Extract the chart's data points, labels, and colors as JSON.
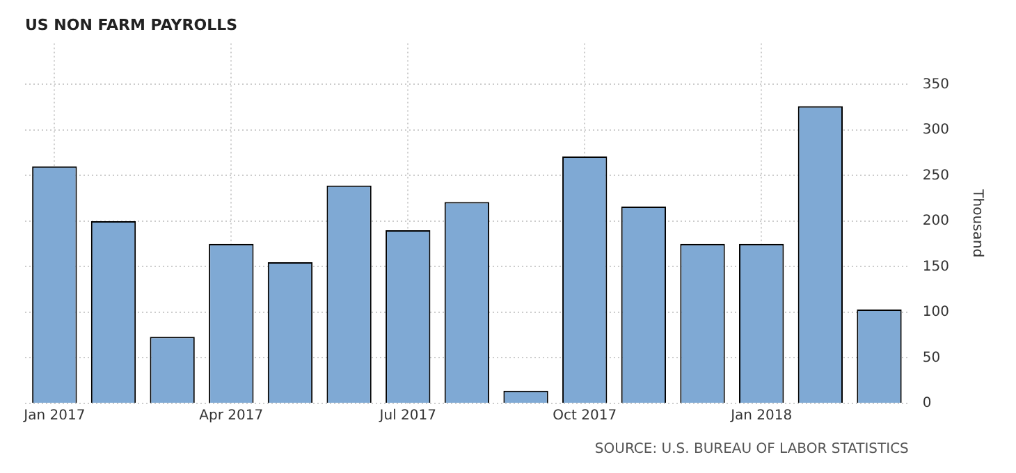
{
  "chart_data": {
    "type": "bar",
    "title": "US NON FARM PAYROLLS",
    "ylabel": "Thousand",
    "categories": [
      "Jan 2017",
      null,
      null,
      "Apr 2017",
      null,
      null,
      "Jul 2017",
      null,
      null,
      "Oct 2017",
      null,
      null,
      "Jan 2018",
      null,
      null
    ],
    "values": [
      260,
      200,
      73,
      175,
      155,
      239,
      190,
      221,
      14,
      271,
      216,
      175,
      175,
      326,
      103
    ],
    "color": "#7fa9d4",
    "ylim": [
      0,
      395
    ],
    "yticks": [
      0,
      50,
      100,
      150,
      200,
      250,
      300,
      350
    ],
    "grid": true,
    "legend": false,
    "annotations": [
      "SOURCE: U.S. BUREAU OF LABOR STATISTICS"
    ]
  }
}
